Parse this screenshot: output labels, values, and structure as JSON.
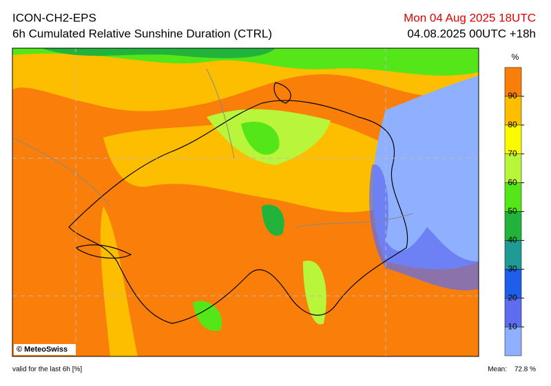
{
  "header": {
    "model": "ICON-CH2-EPS",
    "title": "6h Cumulated Relative Sunshine Duration (CTRL)",
    "valid_time": "Mon 04 Aug 2025 18UTC",
    "run": "04.08.2025 00UTC +18h"
  },
  "map": {
    "credit": "© MeteoSwiss"
  },
  "colorbar": {
    "unit": "%",
    "lim": [
      0,
      100
    ],
    "ticks": [
      10,
      20,
      30,
      40,
      50,
      60,
      70,
      80,
      90
    ],
    "colors": [
      "#8fb0ff",
      "#5e6cf0",
      "#1f5ee8",
      "#1f9a95",
      "#22b43a",
      "#55e619",
      "#b8f53b",
      "#fbfb00",
      "#fdbe00",
      "#f97f0a"
    ]
  },
  "footer": {
    "note": "valid for the last 6h [%]",
    "mean_label": "Mean:",
    "mean_value": "72.8 %"
  }
}
